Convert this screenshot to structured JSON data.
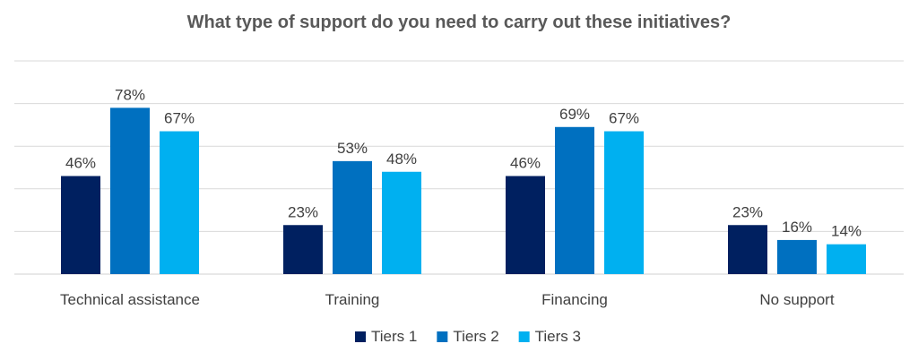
{
  "chart_data": {
    "type": "bar",
    "title": "What type of support do you need to carry out these initiatives?",
    "categories": [
      "Technical assistance",
      "Training",
      "Financing",
      "No support"
    ],
    "series": [
      {
        "name": "Tiers 1",
        "values": [
          46,
          23,
          46,
          23
        ],
        "color": "#002060"
      },
      {
        "name": "Tiers 2",
        "values": [
          78,
          53,
          69,
          16
        ],
        "color": "#0070C0"
      },
      {
        "name": "Tiers 3",
        "values": [
          67,
          48,
          67,
          14
        ],
        "color": "#00B0F0"
      }
    ],
    "value_suffix": "%",
    "ylim": [
      0,
      100
    ],
    "gridlines": true,
    "gridline_color": "#D9D9D9",
    "legend_position": "bottom"
  }
}
